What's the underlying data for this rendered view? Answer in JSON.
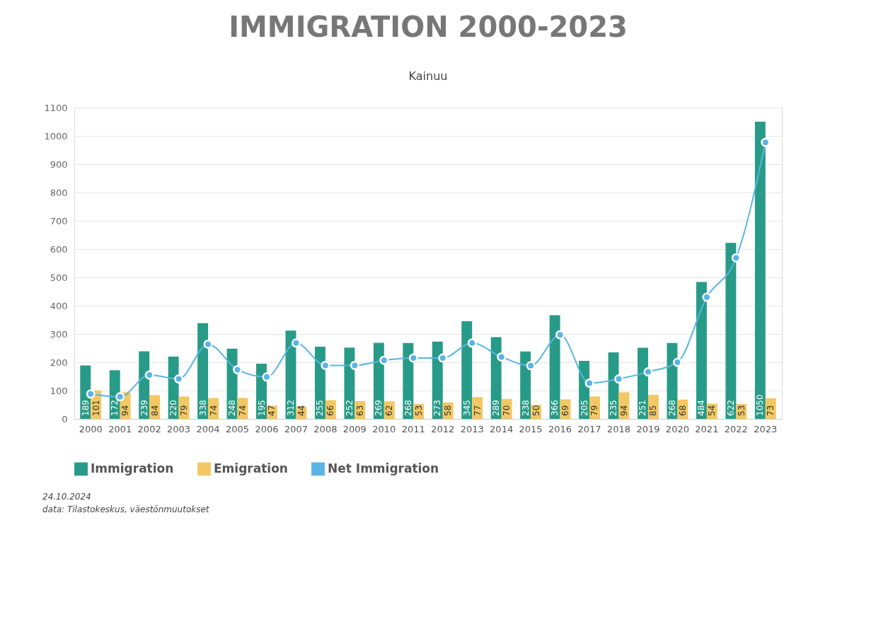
{
  "chart_data": {
    "type": "bar",
    "title": "IMMIGRATION 2000-2023",
    "subtitle": "Kainuu",
    "categories": [
      "2000",
      "2001",
      "2002",
      "2003",
      "2004",
      "2005",
      "2006",
      "2007",
      "2008",
      "2009",
      "2010",
      "2011",
      "2012",
      "2013",
      "2014",
      "2015",
      "2016",
      "2017",
      "2018",
      "2019",
      "2020",
      "2021",
      "2022",
      "2023"
    ],
    "series": [
      {
        "name": "Immigration",
        "type": "bar",
        "color": "#279b87",
        "values": [
          189,
          172,
          239,
          220,
          338,
          248,
          195,
          312,
          255,
          252,
          269,
          268,
          273,
          345,
          289,
          238,
          366,
          205,
          235,
          251,
          268,
          484,
          622,
          1050
        ],
        "value_labels": [
          "189",
          "172",
          "239",
          "220",
          "338",
          "248",
          "195",
          "312",
          "255",
          "252",
          "269",
          "268",
          "273",
          "345",
          "289",
          "238",
          "366",
          "205",
          "235",
          "251",
          "268",
          "484",
          "622",
          "1050"
        ]
      },
      {
        "name": "Emigration",
        "type": "bar",
        "color": "#f2c864",
        "values": [
          101,
          94,
          84,
          79,
          74,
          74,
          47,
          44,
          66,
          63,
          62,
          53,
          58,
          77,
          70,
          50,
          69,
          79,
          94,
          85,
          68,
          54,
          53,
          73
        ],
        "value_labels": [
          "101",
          "94",
          "84",
          "79",
          "74",
          "74",
          "47",
          "44",
          "66",
          "63",
          "62",
          "53",
          "58",
          "77",
          "70",
          "50",
          "69",
          "79",
          "94",
          "85",
          "68",
          "54",
          "53",
          "73"
        ]
      },
      {
        "name": "Net Immigration",
        "type": "line",
        "color": "#5ab4e4",
        "marker": "circle",
        "values": [
          88,
          78,
          155,
          141,
          264,
          174,
          148,
          268,
          189,
          189,
          207,
          215,
          215,
          268,
          219,
          188,
          297,
          126,
          141,
          166,
          200,
          430,
          569,
          977
        ]
      }
    ],
    "ylim": [
      0,
      1100
    ],
    "yticks": [
      0,
      100,
      200,
      300,
      400,
      500,
      600,
      700,
      800,
      900,
      1000,
      1100
    ],
    "grid": "y",
    "legend": "bottom",
    "annotations": [
      "24.10.2024",
      "data: Tilastokeskus, väestönmuutokset"
    ]
  }
}
